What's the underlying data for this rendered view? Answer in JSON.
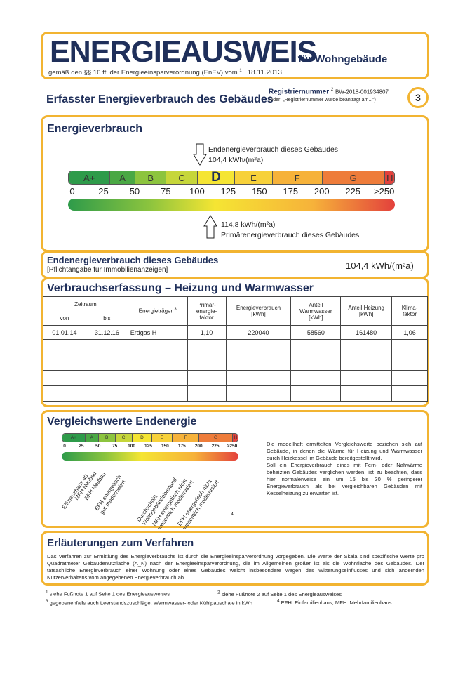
{
  "header": {
    "title": "ENERGIEAUSWEIS",
    "title_suffix": "für Wohngebäude",
    "subtitle": "gemäß den §§ 16 ff. der Energieeinsparverordnung (EnEV) vom",
    "subtitle_footnote": "1",
    "date": "18.11.2013"
  },
  "section_title": "Erfasster Energieverbrauch des Gebäudes",
  "registration": {
    "label": "Registriernummer",
    "footnote": "2",
    "number": "BW-2018-001934807",
    "note": "(oder: „Registriernummer wurde beantragt am...“)"
  },
  "page_number": "3",
  "energy": {
    "title": "Energieverbrauch",
    "final_label": "Endenergieverbrauch dieses Gebäudes",
    "final_value": "104,4 kWh/(m²a)",
    "final_numeric": 104.4,
    "primary_value": "114,8 kWh/(m²a)",
    "primary_label": "Primärenergieverbrauch dieses Gebäudes",
    "primary_numeric": 114.8,
    "classes": [
      {
        "label": "A+",
        "from": 0,
        "to": 30,
        "color": "#2e9b4a"
      },
      {
        "label": "A",
        "from": 30,
        "to": 50,
        "color": "#4aa844"
      },
      {
        "label": "B",
        "from": 50,
        "to": 75,
        "color": "#8cc43e"
      },
      {
        "label": "C",
        "from": 75,
        "to": 100,
        "color": "#c6d63a"
      },
      {
        "label": "D",
        "from": 100,
        "to": 130,
        "color": "#f5e533"
      },
      {
        "label": "E",
        "from": 130,
        "to": 160,
        "color": "#f7d13a"
      },
      {
        "label": "F",
        "from": 160,
        "to": 200,
        "color": "#f6b23a"
      },
      {
        "label": "G",
        "from": 200,
        "to": 250,
        "color": "#ee7c3a"
      },
      {
        "label": "H",
        "from": 250,
        "to": 265,
        "color": "#e3413c"
      }
    ],
    "active_class": "D",
    "ticks": [
      "0",
      "25",
      "50",
      "75",
      "100",
      "125",
      "150",
      "175",
      "200",
      "225",
      ">250"
    ]
  },
  "summary": {
    "label": "Endenergieverbrauch dieses Gebäudes",
    "note": "[Pflichtangabe für Immobilienanzeigen]",
    "value": "104,4 kWh/(m²a)"
  },
  "consumption": {
    "title": "Verbrauchserfassung – Heizung und Warmwasser",
    "headers": {
      "period": "Zeitraum",
      "from": "von",
      "to": "bis",
      "carrier": "Energieträger",
      "carrier_fn": "3",
      "pef": "Primär-\nenergie-\nfaktor",
      "consumption": "Energieverbrauch\n[kWh]",
      "hotwater": "Anteil\nWarmwasser\n[kWh]",
      "heating": "Anteil Heizung\n[kWh]",
      "climate": "Klima-\nfaktor"
    },
    "rows": [
      {
        "from": "01.01.14",
        "to": "31.12.16",
        "carrier": "Erdgas H",
        "pef": "1,10",
        "consumption": "220040",
        "hotwater": "58560",
        "heating": "161480",
        "climate": "1,06"
      }
    ]
  },
  "comparison": {
    "title": "Vergleichswerte Endenergie",
    "labels": [
      "Effizienzhaus 40",
      "MFH Neubau",
      "EFH Neubau",
      "EFH energetisch\ngut modernisiert",
      "Durchschnitt\nWohngebäudebestand",
      "MFH energetisch nicht\nwesentlich modernisiert",
      "EFH energetisch nicht\nwesentlich modernisiert"
    ],
    "footnote": "4",
    "text1": "Die modellhaft ermittelten Vergleichswerte beziehen sich auf Gebäude, in denen die Wärme für Heizung und Warmwasser durch Heizkessel im Gebäude bereitgestellt wird.",
    "text2": "Soll ein Energieverbrauch eines mit Fern- oder Nahwärme beheizten Gebäudes verglichen werden, ist zu beachten, dass hier normalerweise ein um 15 bis 30 % geringerer Energieverbrauch als bei vergleichbaren Gebäuden mit Kesselheizung zu erwarten ist."
  },
  "explanation": {
    "title": "Erläuterungen zum Verfahren",
    "text": "Das Verfahren zur Ermittlung des Energieverbrauchs ist durch die Energieeinsparverordnung vorgegeben. Die Werte der Skala sind spezifische Werte pro Quadratmeter Gebäudenutzfläche (A_N) nach der Energieeinsparverordnung, die im Allgemeinen größer ist als die Wohnfläche des Gebäudes. Der tatsächliche Energieverbrauch einer Wohnung oder eines Gebäudes weicht insbesondere wegen des Witterungseinflusses und sich ändernden Nutzerverhaltens vom angegebenen Energieverbrauch ab."
  },
  "footnotes": [
    {
      "n": "1",
      "text": "siehe Fußnote 1 auf Seite 1 des Energieausweises"
    },
    {
      "n": "2",
      "text": "siehe Fußnote 2 auf Seite 1 des Energieausweises"
    },
    {
      "n": "3",
      "text": "gegebenenfalls auch Leerstandszuschläge, Warmwasser- oder Kühlpauschale in kWh"
    },
    {
      "n": "4",
      "text": "EFH: Einfamilienhaus, MFH: Mehrfamilienhaus"
    }
  ]
}
